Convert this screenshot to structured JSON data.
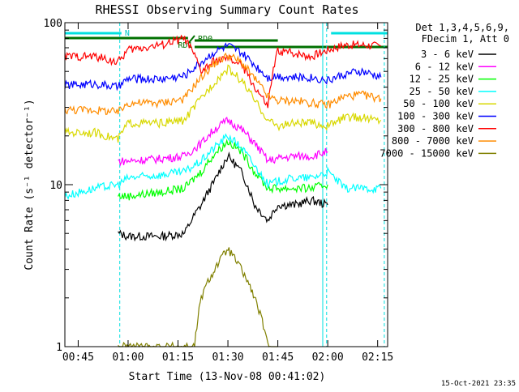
{
  "chart_data": {
    "type": "line",
    "title": "RHESSI Observing Summary Count Rates",
    "xlabel": "Start Time (13-Nov-08 00:41:02)",
    "ylabel": "Count Rate (s⁻¹ detector⁻¹)",
    "y_scale": "log",
    "ylim": [
      1,
      100
    ],
    "xlim": [
      "00:41",
      "02:18"
    ],
    "x_ticks": [
      "00:45",
      "01:00",
      "01:15",
      "01:30",
      "01:45",
      "02:00",
      "02:15"
    ],
    "y_ticks": [
      "1",
      "10",
      "100"
    ],
    "grid": false,
    "legend_placement": "right",
    "legend_header": [
      "Det 1,3,4,5,6,9,",
      "FDecim 1, Att 0"
    ],
    "footer_date": "15-Oct-2021 23:35",
    "flag_labels": {
      "night": "N",
      "rd0": "RD0",
      "rd1": "RD1"
    },
    "flags": {
      "night": [
        [
          "00:41",
          "00:58"
        ],
        [
          "02:01",
          "02:18"
        ]
      ],
      "rd0": [
        [
          "00:41",
          "01:18"
        ],
        [
          "01:18",
          "01:45"
        ],
        [
          "01:45",
          "02:18"
        ]
      ],
      "rd1": [
        [
          "01:18",
          "01:20"
        ]
      ],
      "night_line_times": [
        "00:57:30",
        "01:59:40",
        "02:17:00"
      ],
      "saa_line_times": [
        "01:58:30"
      ]
    },
    "series": [
      {
        "name": "3 - 6 keV",
        "color": "#000000",
        "x": [
          "00:57",
          "01:00",
          "01:10",
          "01:17",
          "01:22",
          "01:26",
          "01:30",
          "01:34",
          "01:38",
          "01:42",
          "01:45",
          "01:50",
          "01:55",
          "02:00"
        ],
        "y": [
          5.0,
          4.8,
          4.8,
          5.0,
          7.5,
          10.5,
          15.0,
          12.0,
          7.5,
          6.0,
          7.5,
          7.5,
          8.0,
          7.5
        ]
      },
      {
        "name": "6 - 12 keV",
        "color": "#ff00ff",
        "x": [
          "00:57",
          "01:00",
          "01:10",
          "01:17",
          "01:22",
          "01:26",
          "01:30",
          "01:34",
          "01:38",
          "01:42",
          "01:45",
          "01:50",
          "01:55",
          "02:00"
        ],
        "y": [
          14,
          14,
          14.5,
          15,
          18,
          22,
          25,
          22,
          18,
          14,
          14.5,
          15,
          15,
          16
        ]
      },
      {
        "name": "12 - 25 keV",
        "color": "#00ff00",
        "x": [
          "00:57",
          "01:00",
          "01:10",
          "01:17",
          "01:22",
          "01:26",
          "01:30",
          "01:34",
          "01:38",
          "01:42",
          "01:45",
          "01:50",
          "01:55",
          "02:00"
        ],
        "y": [
          8.5,
          8.5,
          9,
          9.5,
          12,
          15.5,
          18.5,
          16,
          12,
          9.5,
          9.5,
          9.5,
          9.5,
          10
        ]
      },
      {
        "name": "25 - 50 keV",
        "color": "#00ffff",
        "x": [
          "00:41",
          "00:50",
          "00:57",
          "01:00",
          "01:10",
          "01:17",
          "01:22",
          "01:26",
          "01:30",
          "01:34",
          "01:38",
          "01:42",
          "01:45",
          "01:50",
          "01:55",
          "02:00",
          "02:05",
          "02:10",
          "02:16"
        ],
        "y": [
          8.5,
          9.5,
          10,
          11,
          11.5,
          12,
          14,
          17,
          20,
          17,
          13,
          10,
          10.5,
          11,
          11,
          12,
          9.5,
          9.5,
          9.5
        ]
      },
      {
        "name": "50 - 100 keV",
        "color": "#d8d800",
        "x": [
          "00:41",
          "00:50",
          "00:57",
          "01:00",
          "01:10",
          "01:17",
          "01:22",
          "01:26",
          "01:30",
          "01:34",
          "01:38",
          "01:42",
          "01:45",
          "01:50",
          "01:55",
          "02:00",
          "02:05",
          "02:10",
          "02:16"
        ],
        "y": [
          21,
          21,
          19,
          24,
          24,
          25,
          34,
          43,
          52,
          44,
          33,
          25,
          23,
          24,
          24,
          23,
          26,
          26,
          25
        ]
      },
      {
        "name": "100 - 300 keV",
        "color": "#0000ff",
        "x": [
          "00:41",
          "00:50",
          "00:57",
          "01:00",
          "01:10",
          "01:17",
          "01:22",
          "01:26",
          "01:30",
          "01:34",
          "01:38",
          "01:42",
          "01:45",
          "01:50",
          "01:55",
          "02:00",
          "02:05",
          "02:10",
          "02:16"
        ],
        "y": [
          41,
          42,
          40,
          45,
          45,
          47,
          57,
          66,
          72,
          65,
          55,
          46,
          47,
          46,
          46,
          44,
          48,
          50,
          46
        ]
      },
      {
        "name": "300 - 800 keV",
        "color": "#ff0000",
        "x": [
          "00:41",
          "00:50",
          "00:57",
          "01:00",
          "01:10",
          "01:17",
          "01:22",
          "01:26",
          "01:30",
          "01:34",
          "01:38",
          "01:42",
          "01:45",
          "01:50",
          "01:55",
          "02:00",
          "02:05",
          "02:10",
          "02:16"
        ],
        "y": [
          62,
          62,
          57,
          68,
          73,
          80,
          50,
          58,
          60,
          55,
          40,
          30,
          67,
          65,
          62,
          68,
          73,
          73,
          72
        ]
      },
      {
        "name": "800 - 7000 keV",
        "color": "#ff8c00",
        "x": [
          "00:41",
          "00:50",
          "00:57",
          "01:00",
          "01:10",
          "01:17",
          "01:22",
          "01:26",
          "01:30",
          "01:34",
          "01:38",
          "01:42",
          "01:45",
          "01:50",
          "01:55",
          "02:00",
          "02:05",
          "02:10",
          "02:16"
        ],
        "y": [
          29,
          29,
          28,
          32,
          32,
          34,
          46,
          56,
          63,
          57,
          45,
          35,
          33,
          33,
          32,
          31,
          35,
          36,
          34
        ]
      },
      {
        "name": "7000 - 15000 keV",
        "color": "#808000",
        "x": [
          "00:57",
          "01:20",
          "01:22",
          "01:26",
          "01:30",
          "01:34",
          "01:38",
          "01:42",
          "01:45"
        ],
        "y": [
          1.0,
          1.0,
          2.0,
          3.0,
          4.0,
          3.0,
          2.0,
          1.0,
          1.0
        ]
      }
    ]
  }
}
